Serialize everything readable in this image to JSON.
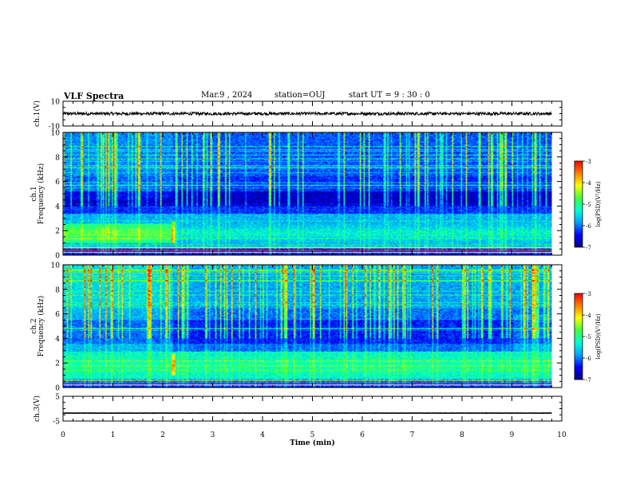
{
  "header": {
    "title": "VLF Spectra",
    "date": "Mar.9  , 2024",
    "station": "station=OUJ",
    "start_ut": "start  UT =   9  : 30 : 0"
  },
  "chart_data": {
    "type": "heatmap",
    "xlabel": "Time  (min)",
    "xlim": [
      0,
      10
    ],
    "x_ticks": [
      "0",
      "1",
      "2",
      "3",
      "4",
      "5",
      "6",
      "7",
      "8",
      "9",
      "10"
    ],
    "panels": [
      {
        "id": "ch1-waveform",
        "type": "line",
        "ylabel": "ch.1(V)",
        "ylim": [
          -10,
          10
        ],
        "y_ticks": [
          "10",
          "-10"
        ],
        "data_end_min": 9.8,
        "baseline": 0,
        "noise_amplitude": 1.2
      },
      {
        "id": "ch1-spectrogram",
        "type": "heatmap",
        "ylabel": "ch.1\nFrequency (kHz)",
        "ylim": [
          0,
          10
        ],
        "y_ticks": [
          "0",
          "2",
          "4",
          "6",
          "8",
          "10"
        ],
        "data_end_min": 9.8,
        "colorbar": {
          "label": "log(PSD)(V²/Hz)",
          "range": [
            -7,
            -3
          ],
          "ticks": [
            "-3",
            "-4",
            "-5",
            "-6",
            "-7"
          ]
        }
      },
      {
        "id": "ch2-spectrogram",
        "type": "heatmap",
        "ylabel": "ch.2\nFrequency (kHz)",
        "ylim": [
          0,
          10
        ],
        "y_ticks": [
          "0",
          "2",
          "4",
          "6",
          "8",
          "10"
        ],
        "data_end_min": 9.8,
        "colorbar": {
          "label": "log(PSD)(V²/Hz)",
          "range": [
            -7,
            -3
          ],
          "ticks": [
            "-3",
            "-4",
            "-5",
            "-6",
            "-7"
          ]
        }
      },
      {
        "id": "ch3-waveform",
        "type": "line",
        "ylabel": "ch.3(V)",
        "ylim": [
          -5,
          5
        ],
        "y_ticks": [
          "5",
          "-5"
        ],
        "data_end_min": 9.8,
        "baseline": -1.8,
        "noise_amplitude": 0.05
      }
    ]
  },
  "colors": {
    "axis": "#000000",
    "colormap": [
      "#000080",
      "#0000ff",
      "#00a0ff",
      "#00ffd0",
      "#40ff40",
      "#ffff00",
      "#ff8000",
      "#ff0000",
      "#ffffff"
    ]
  }
}
